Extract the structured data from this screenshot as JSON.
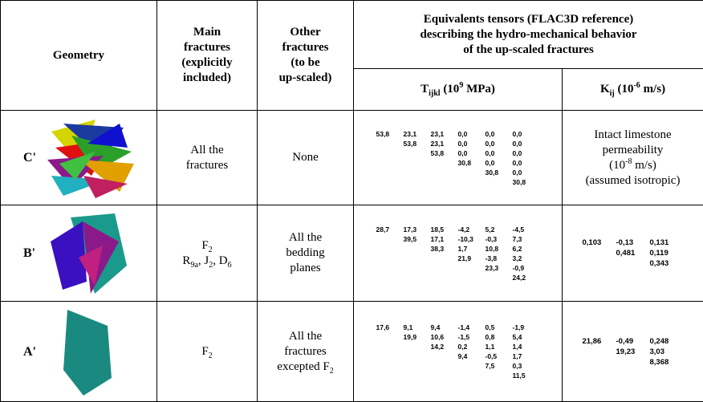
{
  "header": {
    "geometry": [
      [
        {
          "text": "Geometry"
        }
      ]
    ],
    "main": [
      [
        {
          "text": "Main"
        }
      ],
      [
        {
          "text": "fractures"
        }
      ],
      [
        {
          "text": "(explicitly"
        }
      ],
      [
        {
          "text": "included)"
        }
      ]
    ],
    "other": [
      [
        {
          "text": "Other"
        }
      ],
      [
        {
          "text": "fractures"
        }
      ],
      [
        {
          "text": "(to be"
        }
      ],
      [
        {
          "text": "up-scaled)"
        }
      ]
    ],
    "tensors": [
      [
        {
          "text": "Equivalents tensors (FLAC3D reference)"
        }
      ],
      [
        {
          "text": "describing the hydro-mechanical behavior"
        }
      ],
      [
        {
          "text": "of the up-scaled fractures"
        }
      ]
    ],
    "t": [
      [
        {
          "text": "T"
        },
        {
          "sub": "ijkl"
        },
        {
          "text": " (10"
        },
        {
          "sup": "9"
        },
        {
          "text": " MPa)"
        }
      ]
    ],
    "k": [
      [
        {
          "text": "K"
        },
        {
          "sub": "ij"
        },
        {
          "text": " (10"
        },
        {
          "sup": "-6"
        },
        {
          "text": " m/s)"
        }
      ]
    ]
  },
  "rows": [
    {
      "label": "C'",
      "main": [
        [
          {
            "text": "All the"
          }
        ],
        [
          {
            "text": "fractures"
          }
        ]
      ],
      "other": [
        [
          {
            "text": "None"
          }
        ]
      ],
      "t": [
        [
          "53,8",
          "23,1",
          "23,1",
          "0,0",
          "0,0",
          "0,0"
        ],
        [
          "53,8",
          "23,1",
          "0,0",
          "0,0",
          "0,0"
        ],
        [
          "53,8",
          "0,0",
          "0,0",
          "0,0"
        ],
        [
          "30,8",
          "0,0",
          "0,0"
        ],
        [
          "30,8",
          "0,0"
        ],
        [
          "30,8"
        ]
      ],
      "k": [
        [
          {
            "text": "Intact limestone"
          }
        ],
        [
          {
            "text": "permeability"
          }
        ],
        [
          {
            "text": "(10"
          },
          {
            "sup": "-8"
          },
          {
            "text": " m/s)"
          }
        ],
        [
          {
            "text": "(assumed isotropic)"
          }
        ]
      ]
    },
    {
      "label": "B'",
      "main": [
        [
          {
            "text": "F"
          },
          {
            "sub": "2"
          }
        ],
        [
          {
            "text": "R"
          },
          {
            "sub": "9a"
          },
          {
            "text": ", J"
          },
          {
            "sub": "2"
          },
          {
            "text": ", D"
          },
          {
            "sub": "6"
          }
        ]
      ],
      "other": [
        [
          {
            "text": "All the"
          }
        ],
        [
          {
            "text": "bedding"
          }
        ],
        [
          {
            "text": "planes"
          }
        ]
      ],
      "t": [
        [
          "28,7",
          "17,3",
          "18,5",
          "-4,2",
          "5,2",
          "-4,5"
        ],
        [
          "39,5",
          "17,1",
          "-10,3",
          "-0,3",
          "7,3"
        ],
        [
          "38,3",
          "1,7",
          "10,8",
          "6,2"
        ],
        [
          "21,9",
          "-3,8",
          "3,2"
        ],
        [
          "23,3",
          "-0,9"
        ],
        [
          "24,2"
        ]
      ],
      "k": [
        [
          "0,103",
          "-0,13",
          "0,131"
        ],
        [
          "0,481",
          "0,119"
        ],
        [
          "0,343"
        ]
      ]
    },
    {
      "label": "A'",
      "main": [
        [
          {
            "text": "F"
          },
          {
            "sub": "2"
          }
        ]
      ],
      "other": [
        [
          {
            "text": "All the"
          }
        ],
        [
          {
            "text": "fractures"
          }
        ],
        [
          {
            "text": "excepted F"
          },
          {
            "sub": "2"
          }
        ]
      ],
      "t": [
        [
          "17,6",
          "9,1",
          "9,4",
          "-1,4",
          "0,5",
          "-1,9"
        ],
        [
          "19,9",
          "10,6",
          "-1,5",
          "0,8",
          "5,4"
        ],
        [
          "14,2",
          "0,2",
          "1,1",
          "1,4"
        ],
        [
          "9,4",
          "-0,5",
          "1,7"
        ],
        [
          "7,5",
          "0,3"
        ],
        [
          "11,5"
        ]
      ],
      "k": [
        [
          "21,86",
          "-0,49",
          "0,248"
        ],
        [
          "19,23",
          "3,03"
        ],
        [
          "8,368"
        ]
      ]
    }
  ]
}
